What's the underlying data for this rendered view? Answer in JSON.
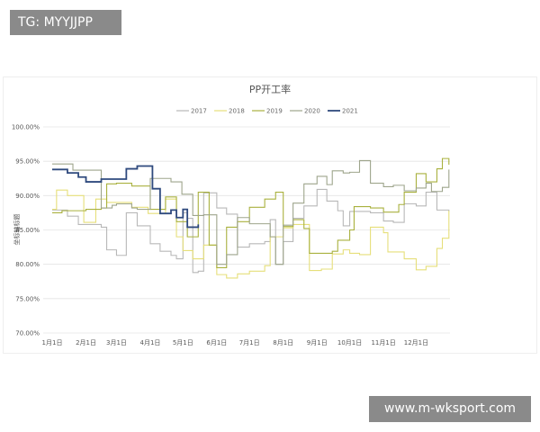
{
  "watermarks": {
    "top_left": "TG: MYYJJPP",
    "bottom_right": "www.m-wksport.com"
  },
  "chart_data": {
    "type": "line",
    "title": "PP开工率",
    "ylabel": "坐标轴标题",
    "xlabel": "",
    "ylim": [
      70,
      100
    ],
    "y_ticks": [
      "100.00%",
      "95.00%",
      "90.00%",
      "85.00%",
      "80.00%",
      "75.00%",
      "70.00%"
    ],
    "y_tick_values": [
      100,
      95,
      90,
      85,
      80,
      75,
      70
    ],
    "x_ticks": [
      "1月1日",
      "2月1日",
      "3月1日",
      "4月1日",
      "5月1日",
      "6月1日",
      "7月1日",
      "8月1日",
      "9月1日",
      "10月1日",
      "11月1日",
      "12月1日"
    ],
    "x_tick_dates": [
      "01-01",
      "02-01",
      "03-01",
      "04-01",
      "05-01",
      "06-01",
      "07-01",
      "08-01",
      "09-01",
      "10-01",
      "11-01",
      "12-01"
    ],
    "x_range": [
      "01-01",
      "12-31"
    ],
    "grid": "horizontal",
    "legend": "top",
    "line_style": "step",
    "series": [
      {
        "name": "2017",
        "color": "#b8b8b8",
        "points": [
          [
            "01-01",
            87.9
          ],
          [
            "01-15",
            87.0
          ],
          [
            "01-25",
            85.8
          ],
          [
            "02-15",
            85.4
          ],
          [
            "02-20",
            82.1
          ],
          [
            "03-01",
            81.3
          ],
          [
            "03-10",
            87.5
          ],
          [
            "03-20",
            85.6
          ],
          [
            "04-01",
            83.0
          ],
          [
            "04-10",
            81.9
          ],
          [
            "04-20",
            81.3
          ],
          [
            "04-25",
            80.8
          ],
          [
            "05-01",
            87.5
          ],
          [
            "05-05",
            86.7
          ],
          [
            "05-10",
            78.8
          ],
          [
            "05-15",
            79.0
          ],
          [
            "05-20",
            90.4
          ],
          [
            "06-01",
            88.2
          ],
          [
            "06-10",
            87.3
          ],
          [
            "06-20",
            82.5
          ],
          [
            "07-01",
            83.0
          ],
          [
            "07-15",
            83.3
          ],
          [
            "07-20",
            86.5
          ],
          [
            "07-25",
            80.0
          ],
          [
            "08-01",
            83.3
          ],
          [
            "08-10",
            86.7
          ],
          [
            "08-20",
            88.5
          ],
          [
            "09-01",
            90.9
          ],
          [
            "09-10",
            89.2
          ],
          [
            "09-20",
            87.8
          ],
          [
            "09-25",
            85.6
          ],
          [
            "10-01",
            87.7
          ],
          [
            "10-20",
            87.5
          ],
          [
            "11-01",
            86.3
          ],
          [
            "11-10",
            86.1
          ],
          [
            "11-20",
            88.8
          ],
          [
            "12-01",
            88.5
          ],
          [
            "12-10",
            90.5
          ],
          [
            "12-20",
            87.9
          ],
          [
            "12-31",
            87.7
          ]
        ]
      },
      {
        "name": "2018",
        "color": "#e6df7a",
        "points": [
          [
            "01-01",
            88.0
          ],
          [
            "01-05",
            90.8
          ],
          [
            "01-15",
            90.0
          ],
          [
            "01-30",
            86.1
          ],
          [
            "02-10",
            89.5
          ],
          [
            "02-20",
            89.0
          ],
          [
            "03-15",
            88.3
          ],
          [
            "03-30",
            87.4
          ],
          [
            "04-15",
            89.5
          ],
          [
            "04-25",
            84.0
          ],
          [
            "05-01",
            82.0
          ],
          [
            "05-10",
            80.8
          ],
          [
            "05-20",
            82.8
          ],
          [
            "06-01",
            78.5
          ],
          [
            "06-10",
            78.0
          ],
          [
            "06-20",
            78.6
          ],
          [
            "07-01",
            79.0
          ],
          [
            "07-15",
            79.8
          ],
          [
            "07-20",
            84.0
          ],
          [
            "08-01",
            85.3
          ],
          [
            "08-10",
            85.8
          ],
          [
            "08-25",
            79.1
          ],
          [
            "09-05",
            79.3
          ],
          [
            "09-15",
            81.5
          ],
          [
            "09-25",
            82.1
          ],
          [
            "10-01",
            81.6
          ],
          [
            "10-10",
            81.4
          ],
          [
            "10-20",
            85.4
          ],
          [
            "11-01",
            84.6
          ],
          [
            "11-05",
            81.8
          ],
          [
            "11-20",
            80.8
          ],
          [
            "12-01",
            79.2
          ],
          [
            "12-10",
            79.7
          ],
          [
            "12-20",
            82.3
          ],
          [
            "12-25",
            83.8
          ],
          [
            "12-31",
            87.8
          ]
        ]
      },
      {
        "name": "2019",
        "color": "#a9b13e",
        "points": [
          [
            "01-01",
            87.5
          ],
          [
            "01-10",
            87.8
          ],
          [
            "02-01",
            88.0
          ],
          [
            "02-15",
            88.2
          ],
          [
            "02-20",
            91.7
          ],
          [
            "03-01",
            91.8
          ],
          [
            "03-15",
            91.4
          ],
          [
            "04-01",
            88.0
          ],
          [
            "04-15",
            89.8
          ],
          [
            "04-25",
            86.2
          ],
          [
            "05-05",
            84.0
          ],
          [
            "05-15",
            90.5
          ],
          [
            "05-25",
            82.8
          ],
          [
            "06-01",
            79.5
          ],
          [
            "06-10",
            85.4
          ],
          [
            "06-20",
            86.2
          ],
          [
            "07-01",
            88.3
          ],
          [
            "07-15",
            89.5
          ],
          [
            "07-25",
            90.5
          ],
          [
            "08-01",
            85.5
          ],
          [
            "08-10",
            86.5
          ],
          [
            "08-20",
            85.2
          ],
          [
            "08-25",
            81.6
          ],
          [
            "09-15",
            81.9
          ],
          [
            "09-20",
            83.5
          ],
          [
            "10-01",
            85.0
          ],
          [
            "10-05",
            88.4
          ],
          [
            "10-20",
            88.2
          ],
          [
            "11-01",
            87.6
          ],
          [
            "11-15",
            88.7
          ],
          [
            "11-20",
            90.5
          ],
          [
            "12-01",
            93.2
          ],
          [
            "12-10",
            92.0
          ],
          [
            "12-20",
            93.9
          ],
          [
            "12-25",
            95.4
          ],
          [
            "12-31",
            94.5
          ]
        ]
      },
      {
        "name": "2020",
        "color": "#9ea58c",
        "points": [
          [
            "01-01",
            94.6
          ],
          [
            "01-20",
            93.7
          ],
          [
            "02-01",
            93.7
          ],
          [
            "02-15",
            88.2
          ],
          [
            "02-25",
            88.6
          ],
          [
            "03-01",
            88.8
          ],
          [
            "03-15",
            88.2
          ],
          [
            "03-20",
            88.0
          ],
          [
            "04-01",
            92.5
          ],
          [
            "04-20",
            92.0
          ],
          [
            "04-30",
            90.2
          ],
          [
            "05-10",
            87.1
          ],
          [
            "05-20",
            87.2
          ],
          [
            "06-01",
            80.0
          ],
          [
            "06-10",
            81.4
          ],
          [
            "06-20",
            86.8
          ],
          [
            "07-01",
            85.9
          ],
          [
            "07-20",
            84.0
          ],
          [
            "07-25",
            80.0
          ],
          [
            "08-01",
            85.7
          ],
          [
            "08-10",
            88.9
          ],
          [
            "08-20",
            91.7
          ],
          [
            "09-01",
            92.8
          ],
          [
            "09-10",
            91.6
          ],
          [
            "09-15",
            93.6
          ],
          [
            "09-25",
            93.3
          ],
          [
            "10-01",
            93.4
          ],
          [
            "10-10",
            95.1
          ],
          [
            "10-20",
            91.8
          ],
          [
            "11-01",
            91.3
          ],
          [
            "11-10",
            91.5
          ],
          [
            "11-20",
            90.7
          ],
          [
            "12-01",
            91.1
          ],
          [
            "12-10",
            91.8
          ],
          [
            "12-15",
            90.6
          ],
          [
            "12-25",
            91.2
          ],
          [
            "12-31",
            93.8
          ]
        ]
      },
      {
        "name": "2021",
        "color": "#2f4a7e",
        "points": [
          [
            "01-01",
            93.8
          ],
          [
            "01-15",
            93.3
          ],
          [
            "01-25",
            92.7
          ],
          [
            "02-01",
            92.0
          ],
          [
            "02-10",
            92.0
          ],
          [
            "02-15",
            92.4
          ],
          [
            "03-01",
            92.4
          ],
          [
            "03-10",
            93.9
          ],
          [
            "03-20",
            94.3
          ],
          [
            "04-01",
            94.3
          ],
          [
            "04-03",
            91.0
          ],
          [
            "04-10",
            87.4
          ],
          [
            "04-20",
            87.9
          ],
          [
            "04-25",
            86.8
          ],
          [
            "05-01",
            88.0
          ],
          [
            "05-05",
            85.4
          ],
          [
            "05-15",
            85.8
          ]
        ]
      }
    ]
  }
}
